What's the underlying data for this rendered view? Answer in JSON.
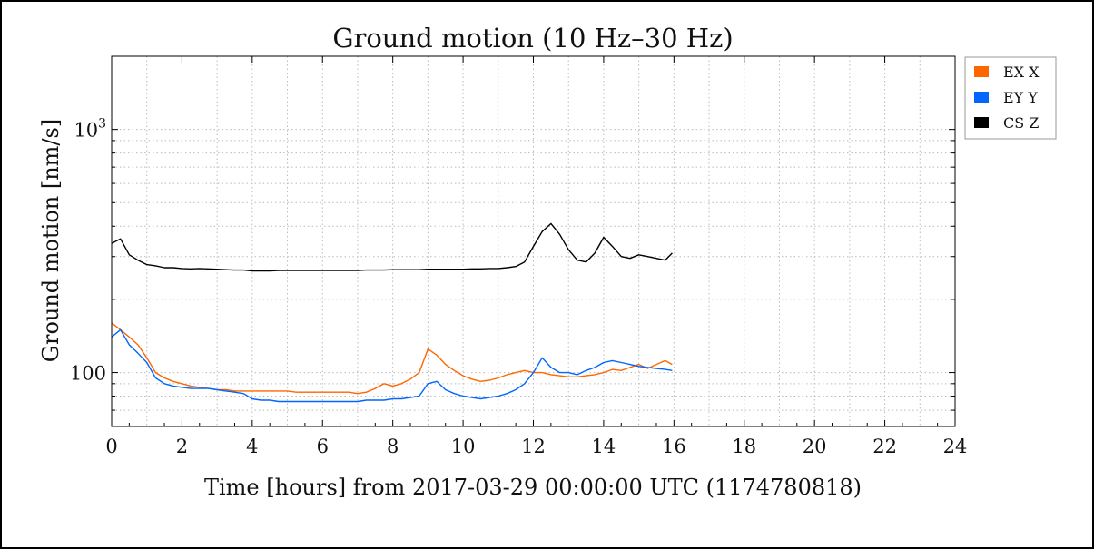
{
  "chart_data": {
    "type": "line",
    "title": "Ground motion (10 Hz–30 Hz)",
    "xlabel": "Time [hours] from 2017-03-29 00:00:00 UTC (1174780818)",
    "ylabel": "Ground motion [nm/s]",
    "xlim": [
      0,
      24
    ],
    "ylim": [
      60,
      2000
    ],
    "yscale": "log",
    "x_ticks": [
      "0",
      "2",
      "4",
      "6",
      "8",
      "10",
      "12",
      "14",
      "16",
      "18",
      "20",
      "22",
      "24"
    ],
    "y_ticks": [
      {
        "value": 100,
        "label": "100"
      },
      {
        "value": 1000,
        "label": "10^3"
      }
    ],
    "grid": true,
    "legend_position": "outside-top-right",
    "x": [
      0,
      0.25,
      0.5,
      0.75,
      1,
      1.25,
      1.5,
      1.75,
      2,
      2.25,
      2.5,
      2.75,
      3,
      3.25,
      3.5,
      3.75,
      4,
      4.25,
      4.5,
      4.75,
      5,
      5.25,
      5.5,
      5.75,
      6,
      6.25,
      6.5,
      6.75,
      7,
      7.25,
      7.5,
      7.75,
      8,
      8.25,
      8.5,
      8.75,
      9,
      9.25,
      9.5,
      9.75,
      10,
      10.25,
      10.5,
      10.75,
      11,
      11.25,
      11.5,
      11.75,
      12,
      12.25,
      12.5,
      12.75,
      13,
      13.25,
      13.5,
      13.75,
      14,
      14.25,
      14.5,
      14.75,
      15,
      15.25,
      15.5,
      15.75,
      15.95
    ],
    "series": [
      {
        "name": "EX X",
        "color": "#ff6600",
        "values": [
          160,
          150,
          140,
          130,
          115,
          100,
          95,
          92,
          90,
          88,
          87,
          86,
          85,
          85,
          84,
          84,
          84,
          84,
          84,
          84,
          84,
          83,
          83,
          83,
          83,
          83,
          83,
          83,
          82,
          83,
          86,
          90,
          88,
          90,
          94,
          100,
          125,
          118,
          108,
          102,
          97,
          94,
          92,
          93,
          95,
          98,
          100,
          102,
          100,
          100,
          98,
          97,
          96,
          96,
          97,
          98,
          100,
          103,
          102,
          105,
          108,
          104,
          108,
          112,
          108
        ]
      },
      {
        "name": "EY Y",
        "color": "#0066ff",
        "values": [
          140,
          150,
          130,
          120,
          110,
          95,
          90,
          88,
          87,
          86,
          86,
          86,
          85,
          84,
          83,
          82,
          78,
          77,
          77,
          76,
          76,
          76,
          76,
          76,
          76,
          76,
          76,
          76,
          76,
          77,
          77,
          77,
          78,
          78,
          79,
          80,
          90,
          92,
          85,
          82,
          80,
          79,
          78,
          79,
          80,
          82,
          85,
          90,
          100,
          115,
          105,
          100,
          100,
          98,
          102,
          105,
          110,
          112,
          110,
          108,
          106,
          105,
          104,
          103,
          102
        ]
      },
      {
        "name": "CS Z",
        "color": "#000000",
        "values": [
          340,
          355,
          305,
          290,
          278,
          275,
          270,
          270,
          268,
          267,
          268,
          267,
          266,
          265,
          264,
          264,
          262,
          262,
          262,
          263,
          263,
          263,
          263,
          263,
          263,
          263,
          263,
          263,
          263,
          264,
          264,
          264,
          265,
          265,
          265,
          265,
          266,
          266,
          266,
          266,
          266,
          267,
          267,
          268,
          268,
          270,
          273,
          285,
          330,
          380,
          410,
          370,
          320,
          290,
          285,
          310,
          360,
          330,
          300,
          295,
          305,
          300,
          295,
          290,
          310
        ]
      }
    ]
  }
}
